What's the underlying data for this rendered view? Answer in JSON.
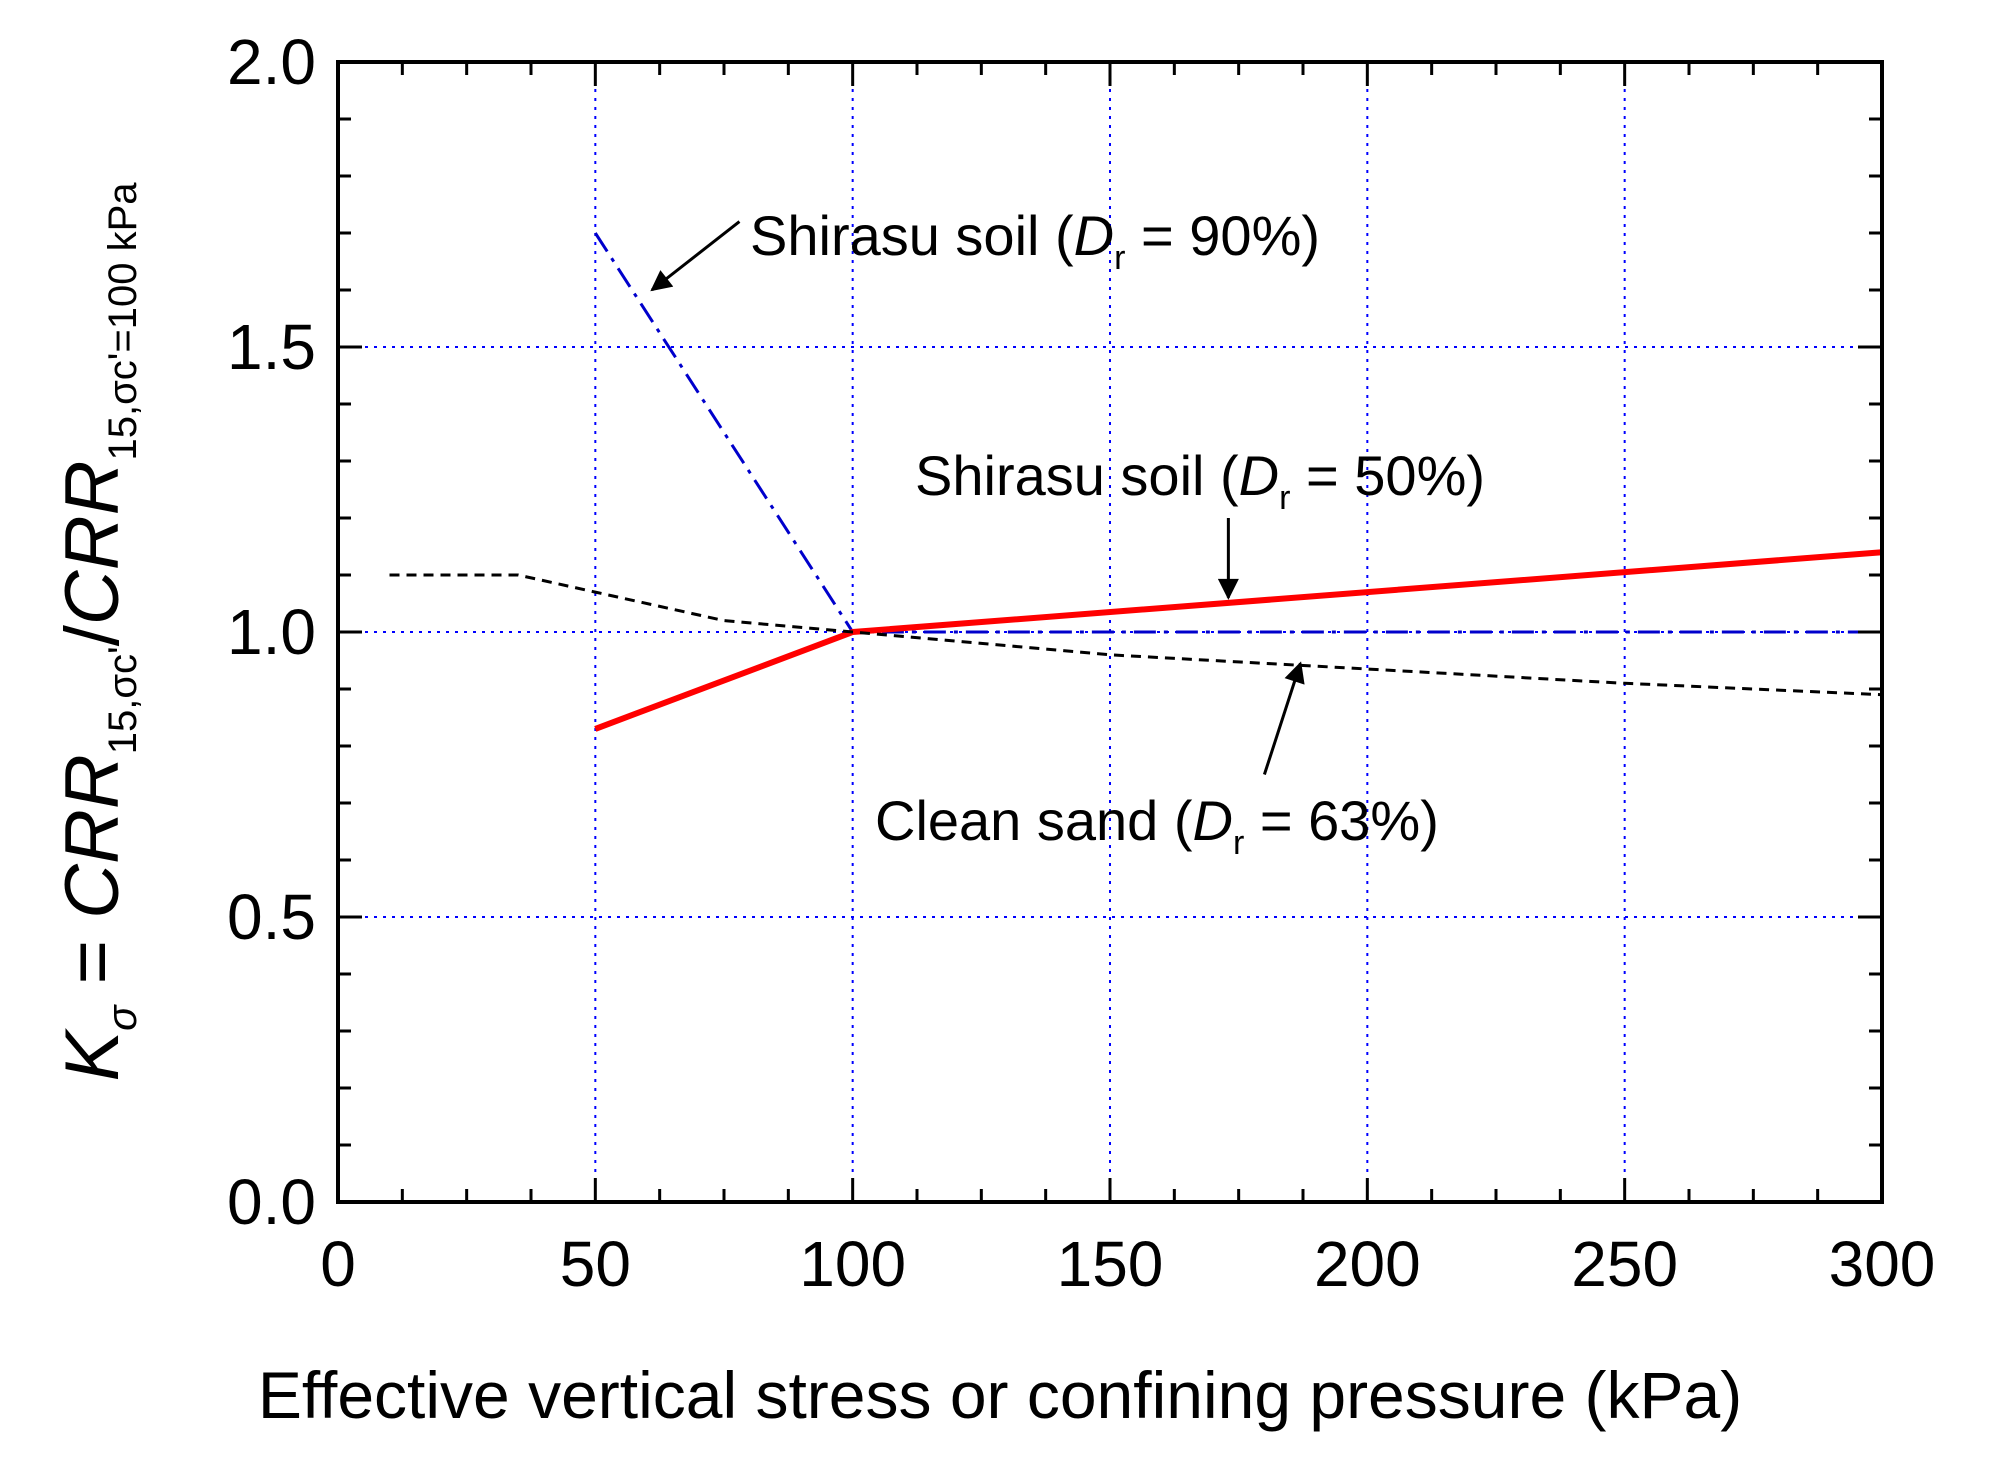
{
  "chart_data": {
    "type": "line",
    "title": "",
    "xlabel": "Effective vertical stress or confining pressure (kPa)",
    "ylabel": {
      "lhs_main": "K",
      "lhs_sub": "σ",
      "equals": " = ",
      "num_main": "CRR",
      "num_sub": "15,σc'",
      "slash": "/",
      "den_main": "CRR",
      "den_sub": "15,σc'=100 kPa"
    },
    "xlim": [
      0,
      300
    ],
    "ylim": [
      0.0,
      2.0
    ],
    "xticks": [
      0,
      50,
      100,
      150,
      200,
      250,
      300
    ],
    "xtick_labels": [
      "0",
      "50",
      "100",
      "150",
      "200",
      "250",
      "300"
    ],
    "yticks": [
      0.0,
      0.5,
      1.0,
      1.5,
      2.0
    ],
    "ytick_labels": [
      "0.0",
      "0.5",
      "1.0",
      "1.5",
      "2.0"
    ],
    "grid": true,
    "series": [
      {
        "name": "Shirasu soil (Dr = 90%)",
        "style": "dash-dot",
        "color": "#0000cc",
        "x": [
          50,
          100,
          300
        ],
        "y": [
          1.7,
          1.0,
          1.0
        ]
      },
      {
        "name": "Shirasu soil (Dr = 50%)",
        "style": "solid",
        "color": "#ff0000",
        "x": [
          50,
          100,
          300
        ],
        "y": [
          0.83,
          1.0,
          1.14
        ]
      },
      {
        "name": "Clean sand (Dr = 63%)",
        "style": "dashed",
        "color": "#000000",
        "x": [
          10,
          35,
          50,
          75,
          100,
          150,
          200,
          250,
          300
        ],
        "y": [
          1.1,
          1.1,
          1.07,
          1.02,
          1.0,
          0.96,
          0.935,
          0.91,
          0.89
        ]
      }
    ],
    "annotations": [
      {
        "id": "dr90",
        "prefix": "Shirasu soil (",
        "var": "D",
        "sub": "r",
        "suffix": " = 90%)",
        "arrow_from": [
          78,
          1.72
        ],
        "arrow_to": [
          61,
          1.6
        ]
      },
      {
        "id": "dr50",
        "prefix": "Shirasu soil (",
        "var": "D",
        "sub": "r",
        "suffix": " = 50%)",
        "arrow_from": [
          173,
          1.2
        ],
        "arrow_to": [
          173,
          1.06
        ]
      },
      {
        "id": "dr63",
        "prefix": "Clean sand (",
        "var": "D",
        "sub": "r",
        "suffix": " = 63%)",
        "arrow_from": [
          180,
          0.75
        ],
        "arrow_to": [
          187,
          0.945
        ]
      }
    ]
  }
}
